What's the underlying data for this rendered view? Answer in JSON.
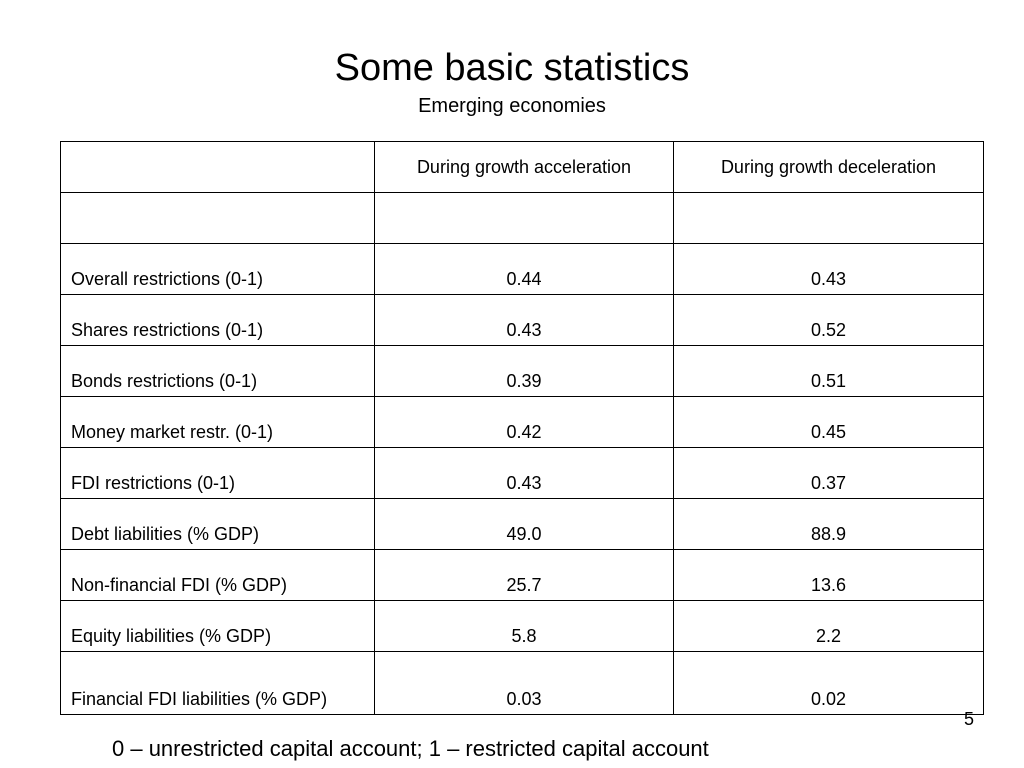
{
  "slide": {
    "title": "Some basic statistics",
    "subtitle": "Emerging economies",
    "page_number": "5",
    "footnote": "0 – unrestricted capital account; 1 – restricted capital account"
  },
  "table": {
    "columns": [
      "",
      "During growth acceleration",
      "During growth deceleration"
    ],
    "rows": [
      {
        "label": "Overall restrictions (0-1)",
        "acceleration": "0.44",
        "deceleration": "0.43"
      },
      {
        "label": "Shares restrictions (0-1)",
        "acceleration": "0.43",
        "deceleration": "0.52"
      },
      {
        "label": "Bonds restrictions (0-1)",
        "acceleration": "0.39",
        "deceleration": "0.51"
      },
      {
        "label": "Money market restr. (0-1)",
        "acceleration": "0.42",
        "deceleration": "0.45"
      },
      {
        "label": "FDI restrictions (0-1)",
        "acceleration": "0.43",
        "deceleration": "0.37"
      },
      {
        "label": "Debt liabilities (% GDP)",
        "acceleration": "49.0",
        "deceleration": "88.9"
      },
      {
        "label": "Non-financial FDI (% GDP)",
        "acceleration": "25.7",
        "deceleration": "13.6"
      },
      {
        "label": "Equity liabilities (% GDP)",
        "acceleration": "5.8",
        "deceleration": "2.2"
      },
      {
        "label": "Financial FDI liabilities (% GDP)",
        "acceleration": "0.03",
        "deceleration": "0.02"
      }
    ]
  }
}
